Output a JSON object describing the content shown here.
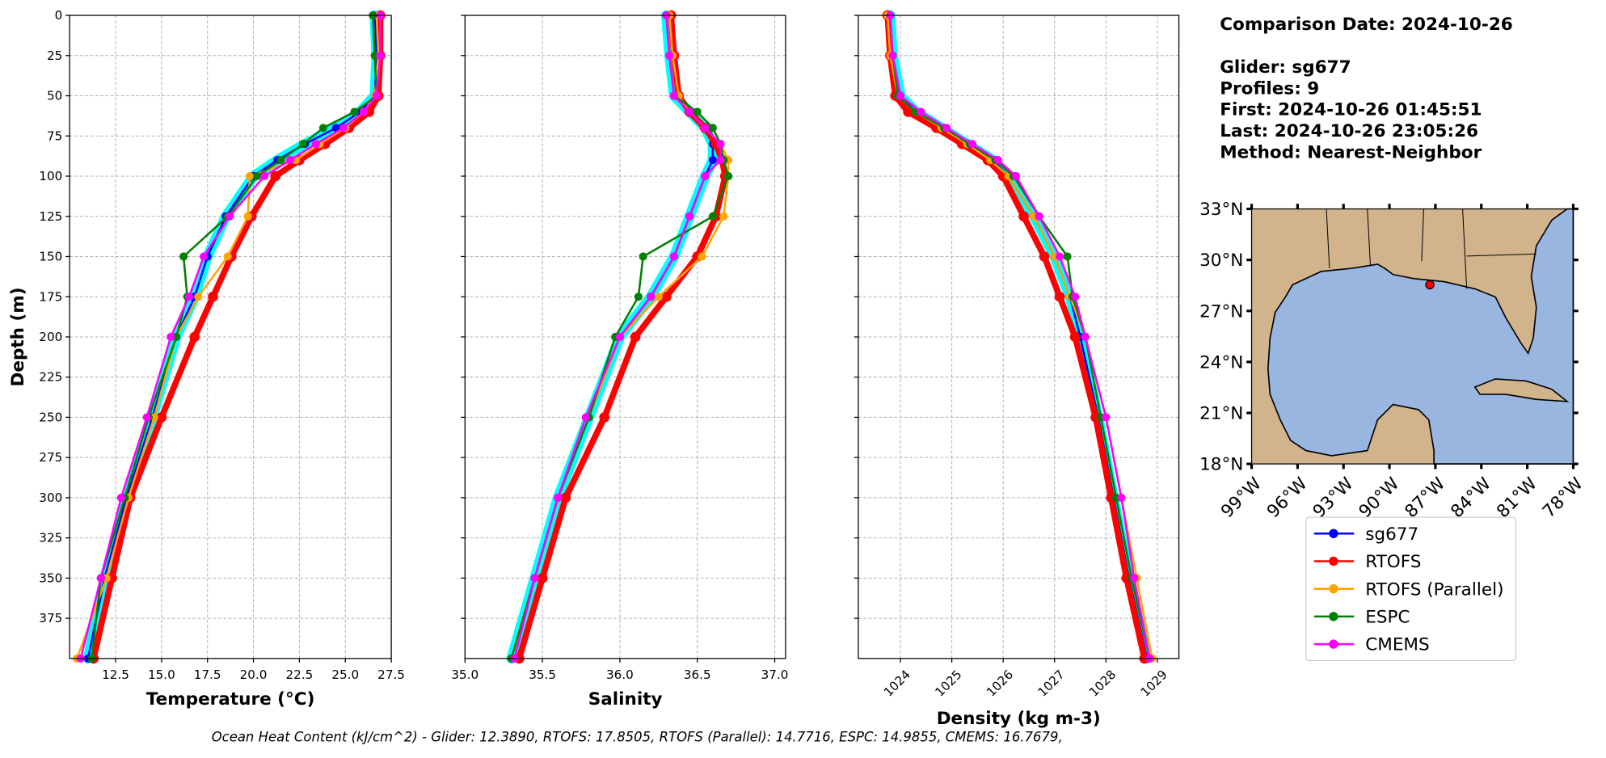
{
  "info": {
    "lines": [
      "Comparison Date: 2024-10-26",
      "Glider: sg677",
      "Profiles: 9",
      "First: 2024-10-26 01:45:51",
      "Last: 2024-10-26 23:05:26",
      "Method: Nearest-Neighbor"
    ]
  },
  "footnote": "Ocean Heat Content (kJ/cm^2) - Glider: 12.3890,  RTOFS: 17.8505,  RTOFS (Parallel): 14.7716,  ESPC: 14.9855,  CMEMS: 16.7679,",
  "chart_data": [
    {
      "type": "profile",
      "xlabel": "Temperature (°C)",
      "ylabel": "Depth (m)",
      "grid": true,
      "xlim": [
        10,
        27.5
      ],
      "xticks": [
        12.5,
        {
          "value": 15,
          "label": "15.0"
        },
        17.5,
        {
          "value": 20,
          "label": "20.0"
        },
        22.5,
        {
          "value": 25,
          "label": "25.0"
        },
        27.5
      ],
      "ylim": [
        0,
        400
      ],
      "y_inverted": true,
      "yticks": [
        0,
        25,
        50,
        75,
        100,
        125,
        150,
        175,
        200,
        225,
        250,
        275,
        300,
        325,
        350,
        375
      ],
      "y": [
        0,
        25,
        50,
        60,
        70,
        80,
        90,
        100,
        125,
        150,
        175,
        200,
        250,
        300,
        350,
        400
      ],
      "series": [
        {
          "name": "sg677",
          "color": "#0000ff",
          "halo_color": "#00ffff",
          "values": [
            26.6,
            26.7,
            26.6,
            25.8,
            24.5,
            22.8,
            21.3,
            20.0,
            18.5,
            17.5,
            16.8,
            15.8,
            14.5,
            13.1,
            11.9,
            11.0
          ]
        },
        {
          "name": "RTOFS",
          "color": "#ff0000",
          "width": 6,
          "values": [
            26.9,
            26.9,
            26.8,
            26.3,
            25.2,
            23.9,
            22.5,
            21.2,
            19.9,
            18.8,
            17.8,
            16.8,
            15.0,
            13.3,
            12.3,
            11.3
          ]
        },
        {
          "name": "RTOFS (Parallel)",
          "color": "#ffa500",
          "values": [
            26.7,
            26.8,
            26.6,
            26.0,
            25.0,
            23.6,
            22.3,
            19.8,
            19.7,
            18.6,
            17.0,
            15.8,
            14.6,
            13.2,
            12.0,
            10.4
          ]
        },
        {
          "name": "ESPC",
          "color": "#008000",
          "values": [
            26.5,
            26.6,
            26.7,
            25.5,
            23.8,
            22.7,
            21.5,
            20.2,
            18.6,
            16.2,
            16.4,
            15.8,
            14.3,
            13.0,
            11.7,
            11.2
          ]
        },
        {
          "name": "CMEMS",
          "color": "#ff00ff",
          "values": [
            26.9,
            26.9,
            26.7,
            26.0,
            24.9,
            23.4,
            22.0,
            20.6,
            18.7,
            17.3,
            16.5,
            15.5,
            14.2,
            12.8,
            11.7,
            10.6
          ]
        }
      ]
    },
    {
      "type": "profile",
      "xlabel": "Salinity",
      "grid": true,
      "xlim": [
        35,
        37.07
      ],
      "xticks": [
        {
          "value": 35,
          "label": "35.0"
        },
        35.5,
        {
          "value": 36,
          "label": "36.0"
        },
        36.5,
        {
          "value": 37,
          "label": "37.0"
        }
      ],
      "y": [
        0,
        25,
        50,
        60,
        70,
        80,
        90,
        100,
        125,
        150,
        175,
        200,
        250,
        300,
        350,
        400
      ],
      "series": [
        {
          "name": "sg677",
          "color": "#0000ff",
          "halo_color": "#00ffff",
          "values": [
            36.3,
            36.32,
            36.35,
            36.45,
            36.55,
            36.6,
            36.6,
            36.55,
            36.45,
            36.35,
            36.2,
            36.0,
            35.8,
            35.6,
            35.45,
            35.3
          ]
        },
        {
          "name": "RTOFS",
          "color": "#ff0000",
          "width": 6,
          "values": [
            36.33,
            36.35,
            36.38,
            36.45,
            36.55,
            36.62,
            36.66,
            36.68,
            36.62,
            36.5,
            36.3,
            36.1,
            35.9,
            35.65,
            35.5,
            35.35
          ]
        },
        {
          "name": "RTOFS (Parallel)",
          "color": "#ffa500",
          "values": [
            36.32,
            36.34,
            36.38,
            36.45,
            36.55,
            36.65,
            36.7,
            36.7,
            36.67,
            36.53,
            36.25,
            36.0,
            35.8,
            35.6,
            35.45,
            35.3
          ]
        },
        {
          "name": "ESPC",
          "color": "#008000",
          "values": [
            36.3,
            36.32,
            36.35,
            36.5,
            36.6,
            36.65,
            36.67,
            36.7,
            36.6,
            36.15,
            36.12,
            35.97,
            35.8,
            35.6,
            35.45,
            35.3
          ]
        },
        {
          "name": "CMEMS",
          "color": "#ff00ff",
          "values": [
            36.3,
            36.32,
            36.35,
            36.45,
            36.55,
            36.65,
            36.65,
            36.55,
            36.45,
            36.35,
            36.2,
            36.0,
            35.78,
            35.6,
            35.45,
            35.32
          ]
        }
      ]
    },
    {
      "type": "profile",
      "xlabel": "Density (kg m-3)",
      "grid": true,
      "xtick_rotation": 45,
      "xlim": [
        1023.18,
        1029.42
      ],
      "xticks": [
        1024,
        1025,
        1026,
        1027,
        1028,
        1029
      ],
      "y": [
        0,
        25,
        50,
        60,
        70,
        80,
        90,
        100,
        125,
        150,
        175,
        200,
        250,
        300,
        350,
        400
      ],
      "series": [
        {
          "name": "sg677",
          "color": "#0000ff",
          "halo_color": "#00ffff",
          "values": [
            1023.8,
            1023.85,
            1024.0,
            1024.3,
            1024.8,
            1025.3,
            1025.8,
            1026.1,
            1026.6,
            1027.0,
            1027.3,
            1027.5,
            1027.85,
            1028.15,
            1028.45,
            1028.8
          ]
        },
        {
          "name": "RTOFS",
          "color": "#ff0000",
          "width": 6,
          "values": [
            1023.75,
            1023.8,
            1023.9,
            1024.15,
            1024.7,
            1025.2,
            1025.7,
            1026.0,
            1026.4,
            1026.8,
            1027.1,
            1027.4,
            1027.8,
            1028.1,
            1028.4,
            1028.75
          ]
        },
        {
          "name": "RTOFS (Parallel)",
          "color": "#ffa500",
          "values": [
            1023.75,
            1023.8,
            1023.95,
            1024.3,
            1024.8,
            1025.3,
            1025.75,
            1026.1,
            1026.6,
            1027.0,
            1027.3,
            1027.6,
            1028.0,
            1028.3,
            1028.6,
            1028.9
          ]
        },
        {
          "name": "ESPC",
          "color": "#008000",
          "values": [
            1023.8,
            1023.85,
            1023.95,
            1024.3,
            1024.85,
            1025.35,
            1025.85,
            1026.2,
            1026.7,
            1027.25,
            1027.35,
            1027.6,
            1027.9,
            1028.2,
            1028.5,
            1028.85
          ]
        },
        {
          "name": "CMEMS",
          "color": "#ff00ff",
          "values": [
            1023.8,
            1023.85,
            1024.0,
            1024.4,
            1024.9,
            1025.4,
            1025.9,
            1026.25,
            1026.7,
            1027.1,
            1027.4,
            1027.6,
            1028.0,
            1028.3,
            1028.55,
            1028.85
          ]
        }
      ]
    }
  ],
  "map": {
    "xlim": [
      -99,
      -78
    ],
    "ylim": [
      18,
      33
    ],
    "xticks": [
      {
        "value": -99,
        "label": "99°W"
      },
      {
        "value": -96,
        "label": "96°W"
      },
      {
        "value": -93,
        "label": "93°W"
      },
      {
        "value": -90,
        "label": "90°W"
      },
      {
        "value": -87,
        "label": "87°W"
      },
      {
        "value": -84,
        "label": "84°W"
      },
      {
        "value": -81,
        "label": "81°W"
      },
      {
        "value": -78,
        "label": "78°W"
      }
    ],
    "yticks": [
      {
        "value": 18,
        "label": "18°N"
      },
      {
        "value": 21,
        "label": "21°N"
      },
      {
        "value": 24,
        "label": "24°N"
      },
      {
        "value": 27,
        "label": "27°N"
      },
      {
        "value": 30,
        "label": "30°N"
      },
      {
        "value": 33,
        "label": "33°N"
      }
    ],
    "glider_position": [
      -87.36,
      28.54
    ],
    "marker_color": "#ff0000"
  }
}
